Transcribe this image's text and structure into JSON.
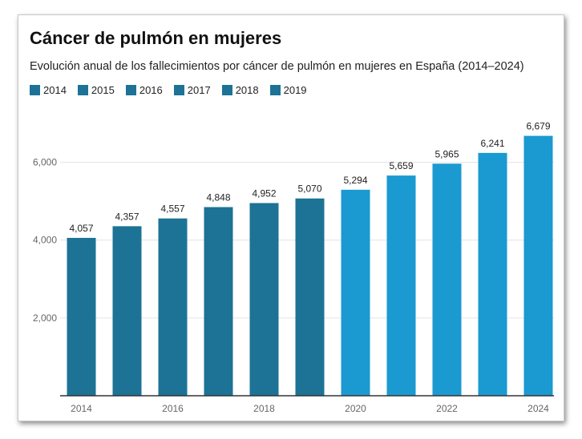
{
  "colors": {
    "dark": "#1c7395",
    "light": "#1a9ad0",
    "grid": "#e3e3e3",
    "axis": "#333333"
  },
  "chart_data": {
    "type": "bar",
    "title": "Cáncer de pulmón en mujeres",
    "subtitle": "Evolución anual de los fallecimientos por cáncer de pulmón en mujeres en España (2014–2024)",
    "legend": [
      "2014",
      "2015",
      "2016",
      "2017",
      "2018",
      "2019"
    ],
    "categories": [
      "2014",
      "2015",
      "2016",
      "2017",
      "2018",
      "2019",
      "2020",
      "2021",
      "2022",
      "2023",
      "2024"
    ],
    "values": [
      4057,
      4357,
      4557,
      4848,
      4952,
      5070,
      5294,
      5659,
      5965,
      6241,
      6679
    ],
    "value_labels": [
      "4,057",
      "4,357",
      "4,557",
      "4,848",
      "4,952",
      "5,070",
      "5,294",
      "5,659",
      "5,965",
      "6,241",
      "6,679"
    ],
    "x_tick_labels": [
      "2014",
      "2016",
      "2018",
      "2020",
      "2022",
      "2024"
    ],
    "y_ticks": [
      2000,
      4000,
      6000
    ],
    "y_tick_labels": [
      "2,000",
      "4,000",
      "6,000"
    ],
    "ylim": [
      0,
      7000
    ],
    "grid": true,
    "legend_position": "top-left"
  }
}
